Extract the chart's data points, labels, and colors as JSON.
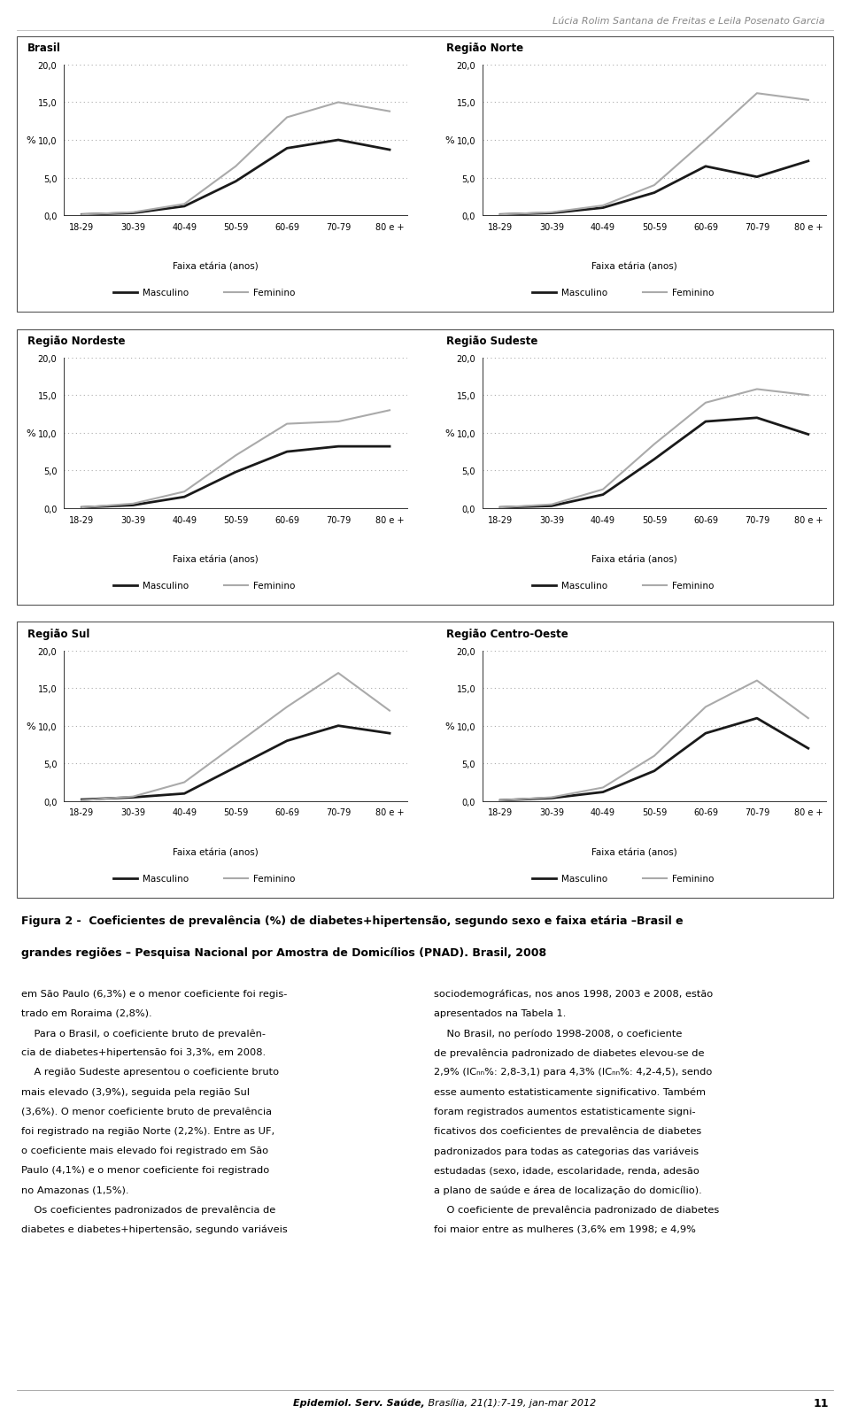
{
  "header_text": "Lúcia Rolim Santana de Freitas e Leila Posenato Garcia",
  "x_labels": [
    "18-29",
    "30-39",
    "40-49",
    "50-59",
    "60-69",
    "70-79",
    "80 e +"
  ],
  "xlabel": "Faixa etária (anos)",
  "ylabel": "%",
  "yticks": [
    0.0,
    5.0,
    10.0,
    15.0,
    20.0
  ],
  "ylim": [
    0.0,
    20.0
  ],
  "legend_masc": "Masculino",
  "legend_fem": "Feminino",
  "color_masc": "#1a1a1a",
  "color_fem": "#aaaaaa",
  "linewidth_masc": 2.0,
  "linewidth_fem": 1.5,
  "subplots": [
    {
      "title": "Brasil",
      "masc": [
        0.1,
        0.3,
        1.2,
        4.5,
        8.9,
        10.0,
        8.7
      ],
      "fem": [
        0.1,
        0.4,
        1.5,
        6.5,
        13.0,
        15.0,
        13.8
      ]
    },
    {
      "title": "Região Norte",
      "masc": [
        0.1,
        0.3,
        1.0,
        3.0,
        6.5,
        5.1,
        7.2
      ],
      "fem": [
        0.1,
        0.4,
        1.3,
        4.0,
        10.0,
        16.2,
        15.3
      ]
    },
    {
      "title": "Região Nordeste",
      "masc": [
        0.1,
        0.4,
        1.5,
        4.8,
        7.5,
        8.2,
        8.2
      ],
      "fem": [
        0.1,
        0.6,
        2.2,
        7.0,
        11.2,
        11.5,
        13.0
      ]
    },
    {
      "title": "Região Sudeste",
      "masc": [
        0.1,
        0.3,
        1.8,
        6.5,
        11.5,
        12.0,
        9.8
      ],
      "fem": [
        0.1,
        0.5,
        2.5,
        8.5,
        14.0,
        15.8,
        15.0
      ]
    },
    {
      "title": "Região Sul",
      "masc": [
        0.2,
        0.5,
        1.0,
        4.5,
        8.0,
        10.0,
        9.0
      ],
      "fem": [
        0.1,
        0.6,
        2.5,
        7.5,
        12.5,
        17.0,
        12.0
      ]
    },
    {
      "title": "Região Centro-Oeste",
      "masc": [
        0.1,
        0.4,
        1.2,
        4.0,
        9.0,
        11.0,
        7.0
      ],
      "fem": [
        0.1,
        0.5,
        1.8,
        6.0,
        12.5,
        16.0,
        11.0
      ]
    }
  ],
  "caption_line1": "Figura 2 -  Coeficientes de prevalência (%) de diabetes+hipertensão, segundo sexo e faixa etária –Brasil e",
  "caption_line2": "grandes regiões – Pesquisa Nacional por Amostra de Domicílios (PNAD). Brasil, 2008",
  "body_col1": [
    "em São Paulo (6,3%) e o menor coeficiente foi regis-",
    "trado em Roraima (2,8%).",
    "    Para o Brasil, o coeficiente bruto de prevalên-",
    "cia de diabetes+hipertensão foi 3,3%, em 2008.",
    "    A região Sudeste apresentou o coeficiente bruto",
    "mais elevado (3,9%), seguida pela região Sul",
    "(3,6%). O menor coeficiente bruto de prevalência",
    "foi registrado na região Norte (2,2%). Entre as UF,",
    "o coeficiente mais elevado foi registrado em São",
    "Paulo (4,1%) e o menor coeficiente foi registrado",
    "no Amazonas (1,5%).",
    "    Os coeficientes padronizados de prevalência de",
    "diabetes e diabetes+hipertensão, segundo variáveis"
  ],
  "body_col2": [
    "sociodemográficas, nos anos 1998, 2003 e 2008, estão",
    "apresentados na Tabela 1.",
    "    No Brasil, no período 1998-2008, o coeficiente",
    "de prevalência padronizado de diabetes elevou-se de",
    "2,9% (ICₙₙ%: 2,8-3,1) para 4,3% (ICₙₙ%: 4,2-4,5), sendo",
    "esse aumento estatisticamente significativo. Também",
    "foram registrados aumentos estatisticamente signi-",
    "ficativos dos coeficientes de prevalência de diabetes",
    "padronizados para todas as categorias das variáveis",
    "estudadas (sexo, idade, escolaridade, renda, adesão",
    "a plano de saúde e área de localização do domicílio).",
    "    O coeficiente de prevalência padronizado de diabetes",
    "foi maior entre as mulheres (3,6% em 1998; e 4,9%"
  ],
  "footer_journal_bold": "Epidemiol. Serv. Saúde,",
  "footer_rest": " Brasília, 21(1):7-19, jan-mar 2012",
  "footer_page": "11"
}
